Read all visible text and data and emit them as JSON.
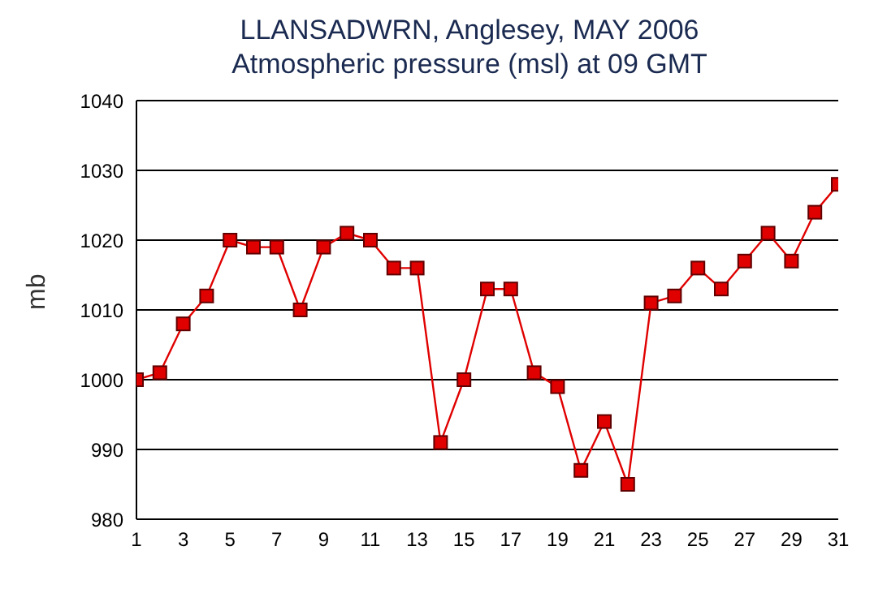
{
  "chart_data": {
    "type": "line",
    "title": "LLANSADWRN, Anglesey,  MAY 2006",
    "subtitle": "Atmospheric pressure  (msl) at 09 GMT",
    "ylabel": "mb",
    "x": [
      1,
      2,
      3,
      4,
      5,
      6,
      7,
      8,
      9,
      10,
      11,
      12,
      13,
      14,
      15,
      16,
      17,
      18,
      19,
      20,
      21,
      22,
      23,
      24,
      25,
      26,
      27,
      28,
      29,
      30,
      31
    ],
    "series": [
      {
        "color": "#e00000",
        "values": [
          1000,
          1001,
          1008,
          1012,
          1020,
          1019,
          1019,
          1010,
          1019,
          1021,
          1020,
          1016,
          1016,
          991,
          1000,
          1013,
          1013,
          1001,
          999,
          987,
          994,
          985,
          1011,
          1012,
          1016,
          1013,
          1017,
          1021,
          1017,
          1024,
          1028
        ]
      }
    ],
    "xlim": [
      1,
      31
    ],
    "xticks": [
      1,
      3,
      5,
      7,
      9,
      11,
      13,
      15,
      17,
      19,
      21,
      23,
      25,
      27,
      29,
      31
    ],
    "ylim": [
      980,
      1040
    ],
    "yticks": [
      980,
      990,
      1000,
      1010,
      1020,
      1030,
      1040
    ],
    "grid": "y",
    "marker": "square",
    "line_style": "solid"
  }
}
